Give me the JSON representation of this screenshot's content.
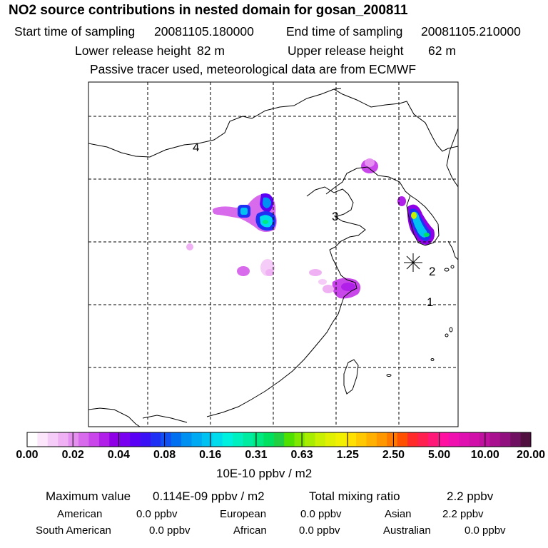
{
  "title": "NO2 source contributions in nested domain for gosan_200811",
  "sampling": {
    "start_label": "Start time of sampling",
    "start_value": "20081105.180000",
    "end_label": "End time of sampling",
    "end_value": "20081105.210000"
  },
  "release": {
    "lower_label": "Lower release height",
    "lower_value": "82 m",
    "upper_label": "Upper release height",
    "upper_value": "62 m"
  },
  "note": "Passive tracer used, meteorological data are from ECMWF",
  "map": {
    "region_labels": [
      "1",
      "2",
      "3",
      "4"
    ],
    "colors": {
      "grid": "#000000",
      "coast": "#000000",
      "receptor": "#000000"
    }
  },
  "colorbar": {
    "tick_labels": [
      "0.00",
      "0.02",
      "0.04",
      "0.08",
      "0.16",
      "0.31",
      "0.63",
      "1.25",
      "2.50",
      "5.00",
      "10.00",
      "20.00"
    ],
    "units": "10E-10 ppbv / m2",
    "colors": [
      "#ffffff",
      "#fbe6fb",
      "#f5ccf7",
      "#efb1f3",
      "#e58ff0",
      "#d86aec",
      "#c846ea",
      "#b020e8",
      "#9000e6",
      "#7a00f0",
      "#5a00f5",
      "#3a10f5",
      "#1f30f5",
      "#1050f2",
      "#0070f0",
      "#0090f2",
      "#00aaf2",
      "#00c2f0",
      "#00dcec",
      "#00f0e0",
      "#00f0c0",
      "#00eca0",
      "#00e880",
      "#00e060",
      "#20d040",
      "#50e000",
      "#80e800",
      "#a8ec00",
      "#c8f000",
      "#e0f000",
      "#f0f000",
      "#ffe000",
      "#ffc800",
      "#ffb000",
      "#ff9800",
      "#ff7800",
      "#ff5000",
      "#ff2a2a",
      "#ff2050",
      "#ff1878",
      "#ff10a0",
      "#f010b0",
      "#e010b0",
      "#d010a8",
      "#c010a0",
      "#a81090",
      "#901080",
      "#701060",
      "#501040"
    ]
  },
  "summary": {
    "max_label": "Maximum value",
    "max_value": "0.114E-09 ppbv / m2",
    "total_label": "Total mixing ratio",
    "total_value": "2.2 ppbv",
    "american_label": "American",
    "american_value": "0.0 ppbv",
    "european_label": "European",
    "european_value": "0.0 ppbv",
    "asian_label": "Asian",
    "asian_value": "2.2 ppbv",
    "south_american_label": "South American",
    "south_american_value": "0.0 ppbv",
    "african_label": "African",
    "african_value": "0.0 ppbv",
    "australian_label": "Australian",
    "australian_value": "0.0 ppbv"
  }
}
